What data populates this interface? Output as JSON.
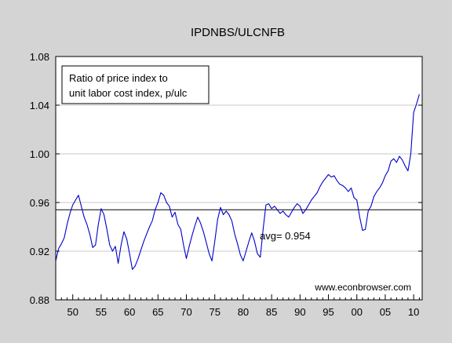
{
  "chart_data": {
    "type": "line",
    "title": "IPDNBS/ULCNFB",
    "xlabel": "",
    "ylabel": "",
    "xlim": [
      1947,
      2011.5
    ],
    "ylim": [
      0.88,
      1.08
    ],
    "y_ticks": [
      "0.88",
      "0.92",
      "0.96",
      "1.00",
      "1.04",
      "1.08"
    ],
    "x_ticks": [
      {
        "label": "50",
        "value": 1950
      },
      {
        "label": "55",
        "value": 1955
      },
      {
        "label": "60",
        "value": 1960
      },
      {
        "label": "65",
        "value": 1965
      },
      {
        "label": "70",
        "value": 1970
      },
      {
        "label": "75",
        "value": 1975
      },
      {
        "label": "80",
        "value": 1980
      },
      {
        "label": "85",
        "value": 1985
      },
      {
        "label": "90",
        "value": 1990
      },
      {
        "label": "95",
        "value": 1995
      },
      {
        "label": "00",
        "value": 2000
      },
      {
        "label": "05",
        "value": 2005
      },
      {
        "label": "10",
        "value": 2010
      }
    ],
    "grid": "horizontal",
    "legend_lines": [
      "Ratio of price index to",
      "unit labor cost index, p/ulc"
    ],
    "reference_line": {
      "value": 0.954,
      "label": "avg= 0.954"
    },
    "watermark": "www.econbrowser.com",
    "line_color": "#0000cc",
    "series": [
      {
        "name": "",
        "x": [
          1947.0,
          1947.5,
          1948.0,
          1948.5,
          1949.0,
          1949.5,
          1950.0,
          1950.5,
          1951.0,
          1951.5,
          1952.0,
          1952.5,
          1953.0,
          1953.5,
          1954.0,
          1954.5,
          1955.0,
          1955.5,
          1956.0,
          1956.5,
          1957.0,
          1957.5,
          1958.0,
          1958.5,
          1959.0,
          1959.5,
          1960.0,
          1960.5,
          1961.0,
          1961.5,
          1962.0,
          1962.5,
          1963.0,
          1963.5,
          1964.0,
          1964.5,
          1965.0,
          1965.5,
          1966.0,
          1966.5,
          1967.0,
          1967.5,
          1968.0,
          1968.5,
          1969.0,
          1969.5,
          1970.0,
          1970.5,
          1971.0,
          1971.5,
          1972.0,
          1972.5,
          1973.0,
          1973.5,
          1974.0,
          1974.5,
          1975.0,
          1975.5,
          1976.0,
          1976.5,
          1977.0,
          1977.5,
          1978.0,
          1978.5,
          1979.0,
          1979.5,
          1980.0,
          1980.5,
          1981.0,
          1981.5,
          1982.0,
          1982.5,
          1983.0,
          1983.5,
          1984.0,
          1984.5,
          1985.0,
          1985.5,
          1986.0,
          1986.5,
          1987.0,
          1987.5,
          1988.0,
          1988.5,
          1989.0,
          1989.5,
          1990.0,
          1990.5,
          1991.0,
          1991.5,
          1992.0,
          1992.5,
          1993.0,
          1993.5,
          1994.0,
          1994.5,
          1995.0,
          1995.5,
          1996.0,
          1996.5,
          1997.0,
          1997.5,
          1998.0,
          1998.5,
          1999.0,
          1999.5,
          2000.0,
          2000.5,
          2001.0,
          2001.5,
          2002.0,
          2002.5,
          2003.0,
          2003.5,
          2004.0,
          2004.5,
          2005.0,
          2005.5,
          2006.0,
          2006.5,
          2007.0,
          2007.5,
          2008.0,
          2008.5,
          2009.0,
          2009.5,
          2010.0,
          2010.5,
          2011.0
        ],
        "y": [
          0.912,
          0.922,
          0.926,
          0.931,
          0.942,
          0.951,
          0.958,
          0.962,
          0.966,
          0.957,
          0.948,
          0.942,
          0.934,
          0.923,
          0.925,
          0.942,
          0.955,
          0.95,
          0.938,
          0.925,
          0.92,
          0.924,
          0.91,
          0.925,
          0.936,
          0.93,
          0.918,
          0.905,
          0.908,
          0.914,
          0.921,
          0.928,
          0.934,
          0.94,
          0.945,
          0.954,
          0.96,
          0.968,
          0.966,
          0.96,
          0.957,
          0.948,
          0.952,
          0.942,
          0.938,
          0.925,
          0.914,
          0.924,
          0.933,
          0.941,
          0.948,
          0.943,
          0.936,
          0.927,
          0.918,
          0.912,
          0.928,
          0.946,
          0.956,
          0.95,
          0.953,
          0.95,
          0.945,
          0.934,
          0.926,
          0.917,
          0.912,
          0.92,
          0.928,
          0.935,
          0.928,
          0.918,
          0.915,
          0.938,
          0.958,
          0.959,
          0.955,
          0.957,
          0.954,
          0.951,
          0.953,
          0.95,
          0.948,
          0.952,
          0.956,
          0.959,
          0.957,
          0.951,
          0.954,
          0.958,
          0.962,
          0.965,
          0.968,
          0.973,
          0.977,
          0.98,
          0.983,
          0.981,
          0.982,
          0.978,
          0.975,
          0.974,
          0.972,
          0.969,
          0.972,
          0.964,
          0.962,
          0.948,
          0.937,
          0.938,
          0.953,
          0.957,
          0.965,
          0.969,
          0.972,
          0.976,
          0.982,
          0.986,
          0.994,
          0.996,
          0.993,
          0.998,
          0.995,
          0.99,
          0.986,
          1.0,
          1.034,
          1.041,
          1.049
        ]
      }
    ]
  }
}
